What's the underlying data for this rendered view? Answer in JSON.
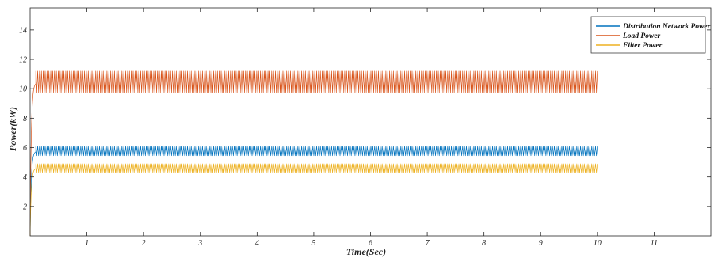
{
  "chart_data": {
    "type": "line",
    "title": "",
    "xlabel": "Time(Sec)",
    "ylabel": "Power(kW)",
    "xlim": [
      0,
      12
    ],
    "ylim": [
      0,
      15.5
    ],
    "x_ticks": [
      1,
      2,
      3,
      4,
      5,
      6,
      7,
      8,
      9,
      10,
      11
    ],
    "y_ticks": [
      2,
      4,
      6,
      8,
      10,
      12,
      14
    ],
    "grid": false,
    "legend_position": "top-right",
    "series": [
      {
        "name": "Distribution Network Power",
        "color": "#0072BD",
        "steady_mean": 5.75,
        "ripple_min": 5.45,
        "ripple_max": 6.1,
        "rise_time": 0.1,
        "end_time": 10
      },
      {
        "name": "Load Power",
        "color": "#D95319",
        "steady_mean": 10.4,
        "ripple_min": 9.75,
        "ripple_max": 11.2,
        "rise_time": 0.1,
        "end_time": 10
      },
      {
        "name": "Filter Power",
        "color": "#EDB120",
        "steady_mean": 4.6,
        "ripple_min": 4.3,
        "ripple_max": 4.9,
        "rise_time": 0.1,
        "end_time": 10
      }
    ]
  }
}
